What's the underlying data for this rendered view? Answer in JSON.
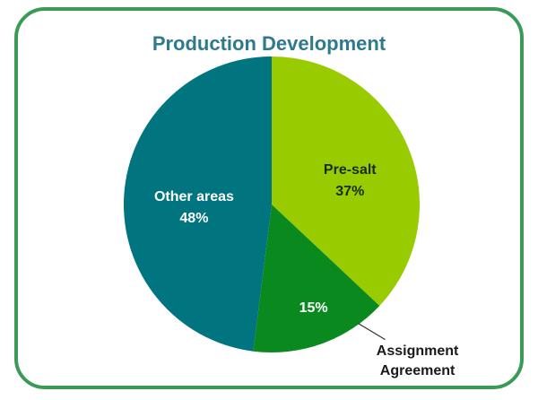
{
  "chart_data": {
    "type": "pie",
    "title": "Production Development",
    "categories": [
      "Pre-salt",
      "Assignment Agreement",
      "Other areas"
    ],
    "values": [
      37,
      15,
      48
    ],
    "value_labels": [
      "37%",
      "15%",
      "48%"
    ],
    "colors": [
      "#99cc00",
      "#0a8a1e",
      "#00747f"
    ]
  }
}
